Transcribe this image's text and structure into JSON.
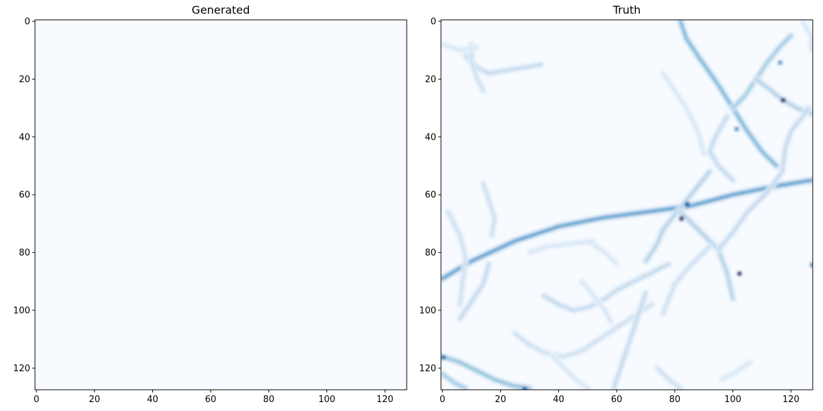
{
  "chart_data": [
    {
      "type": "heatmap",
      "title": "Generated",
      "colormap": "Blues",
      "grid": false,
      "x_ticks": [
        0,
        20,
        40,
        60,
        80,
        100,
        120
      ],
      "y_ticks": [
        0,
        20,
        40,
        60,
        80,
        100,
        120
      ],
      "xlim": [
        -0.5,
        127.5
      ],
      "ylim": [
        127.5,
        -0.5
      ],
      "grid_size": [
        128,
        128
      ],
      "uniform_value": 0,
      "filaments": []
    },
    {
      "type": "heatmap",
      "title": "Truth",
      "colormap": "Blues",
      "grid": false,
      "x_ticks": [
        0,
        20,
        40,
        60,
        80,
        100,
        120
      ],
      "y_ticks": [
        0,
        20,
        40,
        60,
        80,
        100,
        120
      ],
      "xlim": [
        -0.5,
        127.5
      ],
      "ylim": [
        127.5,
        -0.5
      ],
      "grid_size": [
        128,
        128
      ],
      "uniform_value": 0,
      "filaments": [
        {
          "intensity": 0.55,
          "points": [
            [
              0,
              89
            ],
            [
              10,
              83
            ],
            [
              25,
              76
            ],
            [
              40,
              71
            ],
            [
              55,
              68
            ],
            [
              70,
              66
            ],
            [
              85,
              64
            ],
            [
              100,
              60
            ],
            [
              115,
              57
            ],
            [
              127,
              55
            ]
          ]
        },
        {
          "intensity": 0.45,
          "points": [
            [
              115,
              50
            ],
            [
              110,
              45
            ],
            [
              105,
              38
            ],
            [
              100,
              30
            ],
            [
              95,
              22
            ],
            [
              88,
              12
            ],
            [
              84,
              6
            ],
            [
              82,
              0
            ]
          ]
        },
        {
          "intensity": 0.35,
          "points": [
            [
              100,
              30
            ],
            [
              104,
              26
            ],
            [
              108,
              20
            ],
            [
              112,
              14
            ],
            [
              116,
              9
            ],
            [
              120,
              5
            ]
          ]
        },
        {
          "intensity": 0.3,
          "points": [
            [
              108,
              20
            ],
            [
              112,
              23
            ],
            [
              117,
              27
            ],
            [
              122,
              30
            ],
            [
              127,
              32
            ]
          ]
        },
        {
          "intensity": 0.25,
          "points": [
            [
              98,
              33
            ],
            [
              94,
              40
            ],
            [
              92,
              45
            ],
            [
              95,
              50
            ],
            [
              100,
              55
            ]
          ]
        },
        {
          "intensity": 0.3,
          "points": [
            [
              70,
              83
            ],
            [
              74,
              77
            ],
            [
              76,
              72
            ],
            [
              80,
              67
            ],
            [
              84,
              62
            ],
            [
              88,
              57
            ],
            [
              92,
              52
            ]
          ]
        },
        {
          "intensity": 0.3,
          "points": [
            [
              82,
              66
            ],
            [
              86,
              70
            ],
            [
              90,
              74
            ],
            [
              95,
              79
            ],
            [
              98,
              87
            ],
            [
              100,
              96
            ]
          ]
        },
        {
          "intensity": 0.25,
          "points": [
            [
              95,
              79
            ],
            [
              100,
              73
            ],
            [
              105,
              66
            ],
            [
              112,
              59
            ],
            [
              117,
              52
            ],
            [
              118,
              44
            ],
            [
              120,
              38
            ],
            [
              124,
              33
            ],
            [
              126,
              30
            ]
          ]
        },
        {
          "intensity": 0.25,
          "points": [
            [
              35,
              95
            ],
            [
              40,
              98
            ],
            [
              45,
              100
            ],
            [
              50,
              99
            ],
            [
              56,
              96
            ],
            [
              60,
              93
            ],
            [
              66,
              90
            ],
            [
              72,
              87
            ],
            [
              78,
              84
            ]
          ]
        },
        {
          "intensity": 0.2,
          "points": [
            [
              25,
              108
            ],
            [
              30,
              112
            ],
            [
              36,
              115
            ],
            [
              42,
              116
            ],
            [
              48,
              114
            ],
            [
              54,
              110
            ],
            [
              60,
              106
            ],
            [
              66,
              102
            ],
            [
              72,
              98
            ]
          ]
        },
        {
          "intensity": 0.25,
          "points": [
            [
              70,
              94
            ],
            [
              68,
              100
            ],
            [
              66,
              106
            ],
            [
              64,
              112
            ],
            [
              62,
              118
            ],
            [
              60,
              124
            ],
            [
              59,
              127
            ]
          ]
        },
        {
          "intensity": 0.2,
          "points": [
            [
              76,
              101
            ],
            [
              78,
              96
            ],
            [
              80,
              91
            ],
            [
              84,
              86
            ],
            [
              88,
              82
            ],
            [
              92,
              78
            ]
          ]
        },
        {
          "intensity": 0.35,
          "points": [
            [
              0,
              122
            ],
            [
              4,
              125
            ],
            [
              8,
              127
            ]
          ]
        },
        {
          "intensity": 0.4,
          "points": [
            [
              0,
              116
            ],
            [
              6,
              118
            ],
            [
              12,
              121
            ],
            [
              18,
              124
            ],
            [
              24,
              126
            ],
            [
              30,
              127
            ]
          ]
        },
        {
          "intensity": 0.25,
          "points": [
            [
              6,
              103
            ],
            [
              10,
              97
            ],
            [
              14,
              91
            ],
            [
              16,
              84
            ]
          ]
        },
        {
          "intensity": 0.2,
          "points": [
            [
              2,
              66
            ],
            [
              6,
              74
            ],
            [
              8,
              82
            ],
            [
              7,
              90
            ],
            [
              6,
              98
            ]
          ]
        },
        {
          "intensity": 0.2,
          "points": [
            [
              14,
              56
            ],
            [
              16,
              62
            ],
            [
              18,
              68
            ],
            [
              17,
              74
            ]
          ]
        },
        {
          "intensity": 0.25,
          "points": [
            [
              8,
              12
            ],
            [
              12,
              16
            ],
            [
              16,
              18
            ],
            [
              22,
              17
            ],
            [
              28,
              16
            ],
            [
              34,
              15
            ]
          ]
        },
        {
          "intensity": 0.2,
          "points": [
            [
              10,
              8
            ],
            [
              10,
              14
            ],
            [
              12,
              20
            ],
            [
              14,
              24
            ]
          ]
        },
        {
          "intensity": 0.15,
          "points": [
            [
              76,
              18
            ],
            [
              80,
              24
            ],
            [
              84,
              30
            ],
            [
              88,
              38
            ],
            [
              90,
              46
            ]
          ]
        },
        {
          "intensity": 0.15,
          "points": [
            [
              48,
              90
            ],
            [
              52,
              95
            ],
            [
              56,
              100
            ],
            [
              58,
              104
            ]
          ]
        },
        {
          "intensity": 0.15,
          "points": [
            [
              0,
              8
            ],
            [
              6,
              10
            ],
            [
              12,
              9
            ]
          ]
        },
        {
          "intensity": 0.15,
          "points": [
            [
              124,
              0
            ],
            [
              127,
              5
            ],
            [
              127,
              10
            ]
          ]
        },
        {
          "intensity": 0.2,
          "points": [
            [
              74,
              120
            ],
            [
              78,
              124
            ],
            [
              82,
              127
            ]
          ]
        },
        {
          "intensity": 0.15,
          "points": [
            [
              50,
              76
            ],
            [
              56,
              80
            ],
            [
              60,
              84
            ]
          ]
        },
        {
          "intensity": 0.15,
          "points": [
            [
              30,
              80
            ],
            [
              36,
              78
            ],
            [
              44,
              77
            ],
            [
              52,
              76
            ]
          ]
        },
        {
          "intensity": 0.15,
          "points": [
            [
              38,
              116
            ],
            [
              42,
              120
            ],
            [
              46,
              124
            ],
            [
              50,
              127
            ]
          ]
        },
        {
          "intensity": 0.15,
          "points": [
            [
              96,
              124
            ],
            [
              100,
              122
            ],
            [
              106,
              118
            ]
          ]
        }
      ],
      "hotspots": [
        {
          "x": 117,
          "y": 27,
          "intensity": 1.0
        },
        {
          "x": 82,
          "y": 68,
          "intensity": 1.0
        },
        {
          "x": 84,
          "y": 63,
          "intensity": 0.8
        },
        {
          "x": 102,
          "y": 87,
          "intensity": 1.0
        },
        {
          "x": 0,
          "y": 116,
          "intensity": 0.75
        },
        {
          "x": 28,
          "y": 127,
          "intensity": 0.8
        },
        {
          "x": 101,
          "y": 37,
          "intensity": 0.55
        },
        {
          "x": 116,
          "y": 14,
          "intensity": 0.55
        },
        {
          "x": 127,
          "y": 84,
          "intensity": 0.6
        }
      ]
    }
  ]
}
